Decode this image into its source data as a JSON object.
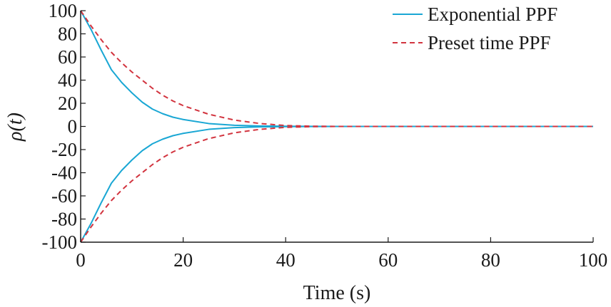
{
  "chart_data": {
    "type": "line",
    "xlabel": "Time (s)",
    "ylabel": "ρ(t)",
    "xlim": [
      0,
      100
    ],
    "ylim": [
      -100,
      100
    ],
    "xticks": [
      "0",
      "20",
      "40",
      "60",
      "80",
      "100"
    ],
    "yticks": [
      "100",
      "80",
      "60",
      "40",
      "20",
      "0",
      "-20",
      "-40",
      "-60",
      "-80",
      "-100"
    ],
    "legend_position": "top-right",
    "grid": false,
    "x": [
      0,
      2,
      4,
      6,
      8,
      10,
      12,
      14,
      16,
      18,
      20,
      25,
      30,
      35,
      40,
      45,
      50,
      60,
      70,
      80,
      90,
      100
    ],
    "series": [
      {
        "name": "Exponential PPF",
        "color": "#1aa7d4",
        "style": "solid",
        "upper": [
          100,
          84,
          66,
          49,
          38,
          29,
          21,
          15,
          11,
          8,
          6,
          2.5,
          1,
          0.4,
          0.15,
          0.05,
          0,
          0,
          0,
          0,
          0,
          0
        ],
        "lower": [
          -100,
          -84,
          -66,
          -49,
          -38,
          -29,
          -21,
          -15,
          -11,
          -8,
          -6,
          -2.5,
          -1,
          -0.4,
          -0.15,
          -0.05,
          0,
          0,
          0,
          0,
          0,
          0
        ]
      },
      {
        "name": "Preset time PPF",
        "color": "#d2343f",
        "style": "dashed",
        "upper": [
          100,
          87,
          75,
          64,
          55,
          47,
          40,
          33,
          27,
          22,
          18,
          10.5,
          5.5,
          2.5,
          0.8,
          0.2,
          0,
          0,
          0,
          0,
          0,
          0
        ],
        "lower": [
          -100,
          -87,
          -75,
          -64,
          -55,
          -47,
          -40,
          -33,
          -27,
          -22,
          -18,
          -10.5,
          -5.5,
          -2.5,
          -0.8,
          -0.2,
          0,
          0,
          0,
          0,
          0,
          0
        ]
      }
    ]
  }
}
